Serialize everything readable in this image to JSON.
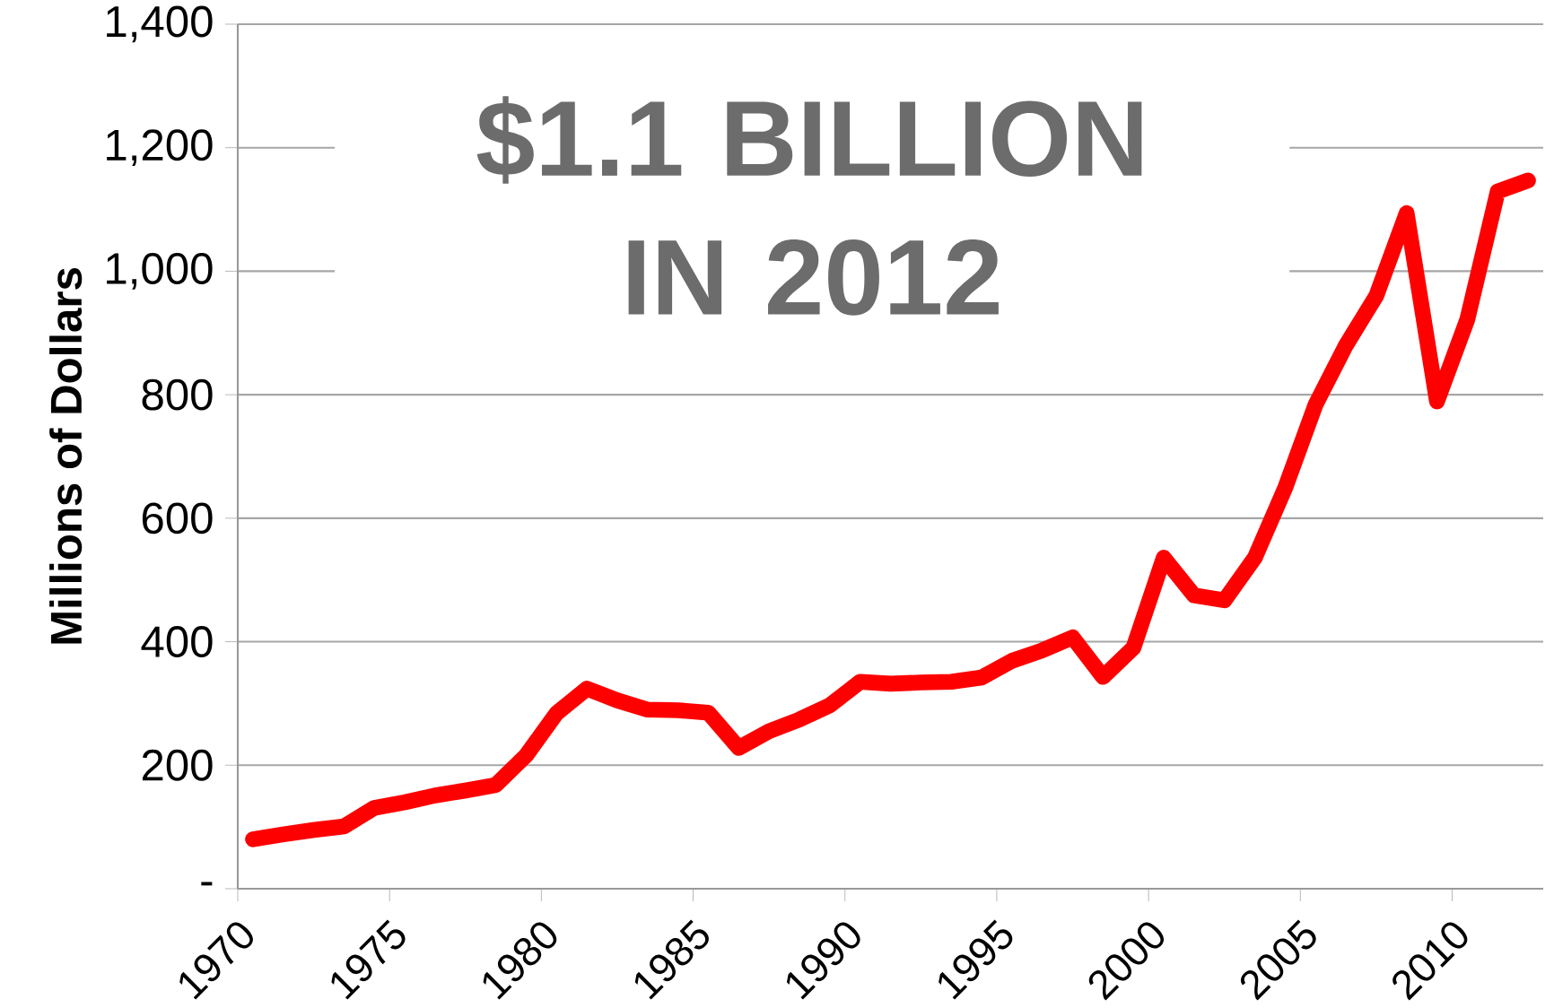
{
  "chart_data": {
    "type": "line",
    "ylabel": "Millions of Dollars",
    "annotations": [
      "$1.1 BILLION IN 2012"
    ],
    "x": [
      1970.5,
      1971.5,
      1972.5,
      1973.5,
      1974.5,
      1975.5,
      1976.5,
      1977.5,
      1978.5,
      1979.5,
      1980.5,
      1981.5,
      1982.5,
      1983.5,
      1984.5,
      1985.5,
      1986.5,
      1987.5,
      1988.5,
      1989.5,
      1990.5,
      1991.5,
      1992.5,
      1993.5,
      1994.5,
      1995.5,
      1996.5,
      1997.5,
      1998.5,
      1999.5,
      2000.5,
      2001.5,
      2002.5,
      2003.5,
      2004.5,
      2005.5,
      2006.5,
      2007.5,
      2008.5,
      2009.5,
      2010.5,
      2011.5,
      2012.5
    ],
    "series": [
      {
        "color": "#ff0000",
        "values": [
          80,
          88,
          95,
          101,
          131,
          140,
          151,
          159,
          168,
          216,
          284,
          324,
          305,
          290,
          289,
          285,
          228,
          255,
          274,
          297,
          335,
          332,
          334,
          335,
          342,
          369,
          386,
          407,
          343,
          390,
          536,
          475,
          467,
          536,
          649,
          784,
          880,
          960,
          1094,
          789,
          922,
          1129,
          1147
        ]
      }
    ],
    "xlim": [
      1970,
      2013
    ],
    "xticks": [
      1970,
      1975,
      1980,
      1985,
      1990,
      1995,
      2000,
      2005,
      2010
    ],
    "ylim": [
      0,
      1400
    ],
    "yticks": [
      {
        "value": 0,
        "label": "-"
      },
      {
        "value": 200,
        "label": "200"
      },
      {
        "value": 400,
        "label": "400"
      },
      {
        "value": 600,
        "label": "600"
      },
      {
        "value": 800,
        "label": "800"
      },
      {
        "value": 1000,
        "label": "1,000"
      },
      {
        "value": 1200,
        "label": "1,200"
      },
      {
        "value": 1400,
        "label": "1,400"
      }
    ],
    "grid": "y",
    "marker": "none",
    "line_style": "solid"
  }
}
